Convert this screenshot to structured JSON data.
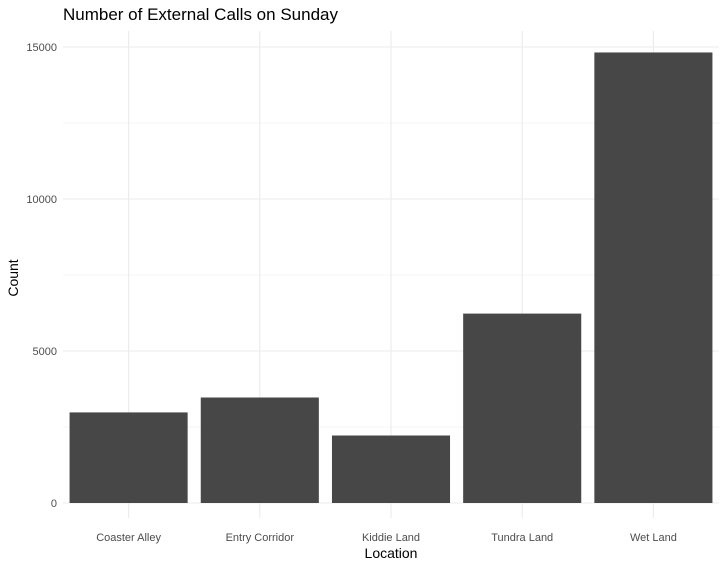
{
  "chart_data": {
    "type": "bar",
    "title": "Number of External Calls on Sunday",
    "xlabel": "Location",
    "ylabel": "Count",
    "categories": [
      "Coaster Alley",
      "Entry Corridor",
      "Kiddie Land",
      "Tundra Land",
      "Wet Land"
    ],
    "values": [
      2980,
      3470,
      2220,
      6230,
      14820
    ],
    "ylim": [
      0,
      15500
    ],
    "yticks": [
      0,
      5000,
      10000,
      15000
    ],
    "ytick_labels": [
      "0",
      "5000",
      "10000",
      "15000"
    ],
    "grid": true,
    "legend": "none",
    "bar_color": "#474747",
    "grid_major_color": "#ebebeb",
    "grid_minor_color": "#f3f3f3"
  }
}
